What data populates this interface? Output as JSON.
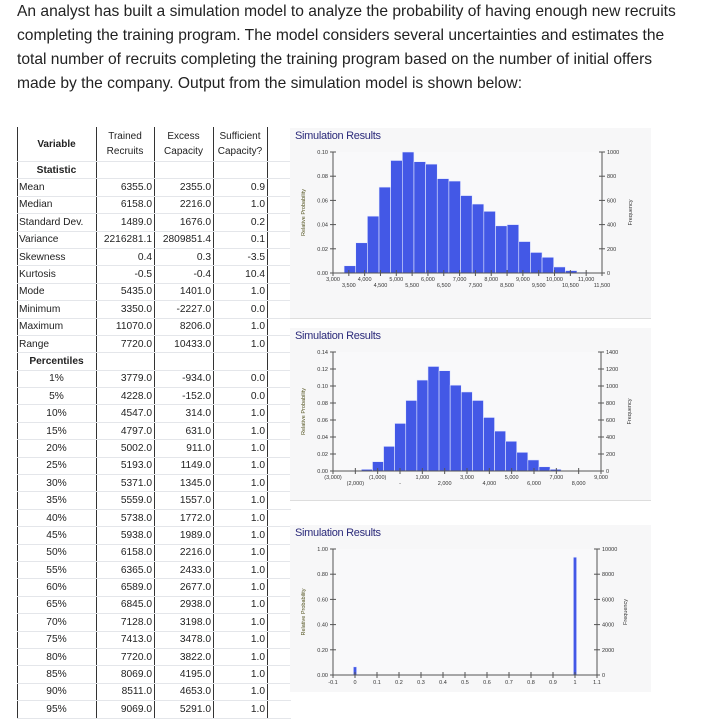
{
  "intro": "An analyst has built a simulation model to analyze the probability of having enough new recruits completing the training program. The model considers several uncertainties and estimates the total number of recruits completing the training program based on the number of initial offers made by the company. Output from the simulation model is shown below:",
  "table": {
    "header": {
      "variable": "Variable",
      "cols": [
        "Trained Recruits",
        "Excess Capacity",
        "Sufficient Capacity?"
      ]
    },
    "statistic_label": "Statistic",
    "stats": [
      {
        "label": "Mean",
        "values": [
          "6355.0",
          "2355.0",
          "0.9"
        ]
      },
      {
        "label": "Median",
        "values": [
          "6158.0",
          "2216.0",
          "1.0"
        ]
      },
      {
        "label": "Standard Dev.",
        "values": [
          "1489.0",
          "1676.0",
          "0.2"
        ]
      },
      {
        "label": "Variance",
        "values": [
          "2216281.1",
          "2809851.4",
          "0.1"
        ]
      },
      {
        "label": "Skewness",
        "values": [
          "0.4",
          "0.3",
          "-3.5"
        ]
      },
      {
        "label": "Kurtosis",
        "values": [
          "-0.5",
          "-0.4",
          "10.4"
        ]
      },
      {
        "label": "Mode",
        "values": [
          "5435.0",
          "1401.0",
          "1.0"
        ]
      },
      {
        "label": "Minimum",
        "values": [
          "3350.0",
          "-2227.0",
          "0.0"
        ]
      },
      {
        "label": "Maximum",
        "values": [
          "11070.0",
          "8206.0",
          "1.0"
        ]
      },
      {
        "label": "Range",
        "values": [
          "7720.0",
          "10433.0",
          "1.0"
        ]
      }
    ],
    "percentiles_label": "Percentiles",
    "percentiles": [
      {
        "label": "1%",
        "values": [
          "3779.0",
          "-934.0",
          "0.0"
        ]
      },
      {
        "label": "5%",
        "values": [
          "4228.0",
          "-152.0",
          "0.0"
        ]
      },
      {
        "label": "10%",
        "values": [
          "4547.0",
          "314.0",
          "1.0"
        ]
      },
      {
        "label": "15%",
        "values": [
          "4797.0",
          "631.0",
          "1.0"
        ]
      },
      {
        "label": "20%",
        "values": [
          "5002.0",
          "911.0",
          "1.0"
        ]
      },
      {
        "label": "25%",
        "values": [
          "5193.0",
          "1149.0",
          "1.0"
        ]
      },
      {
        "label": "30%",
        "values": [
          "5371.0",
          "1345.0",
          "1.0"
        ]
      },
      {
        "label": "35%",
        "values": [
          "5559.0",
          "1557.0",
          "1.0"
        ]
      },
      {
        "label": "40%",
        "values": [
          "5738.0",
          "1772.0",
          "1.0"
        ]
      },
      {
        "label": "45%",
        "values": [
          "5938.0",
          "1989.0",
          "1.0"
        ]
      },
      {
        "label": "50%",
        "values": [
          "6158.0",
          "2216.0",
          "1.0"
        ]
      },
      {
        "label": "55%",
        "values": [
          "6365.0",
          "2433.0",
          "1.0"
        ]
      },
      {
        "label": "60%",
        "values": [
          "6589.0",
          "2677.0",
          "1.0"
        ]
      },
      {
        "label": "65%",
        "values": [
          "6845.0",
          "2938.0",
          "1.0"
        ]
      },
      {
        "label": "70%",
        "values": [
          "7128.0",
          "3198.0",
          "1.0"
        ]
      },
      {
        "label": "75%",
        "values": [
          "7413.0",
          "3478.0",
          "1.0"
        ]
      },
      {
        "label": "80%",
        "values": [
          "7720.0",
          "3822.0",
          "1.0"
        ]
      },
      {
        "label": "85%",
        "values": [
          "8069.0",
          "4195.0",
          "1.0"
        ]
      },
      {
        "label": "90%",
        "values": [
          "8511.0",
          "4653.0",
          "1.0"
        ]
      },
      {
        "label": "95%",
        "values": [
          "9069.0",
          "5291.0",
          "1.0"
        ]
      }
    ]
  },
  "chart_data": [
    {
      "type": "bar",
      "title": "Simulation Results",
      "ylabel": "Relative Probability",
      "y2label": "Frequency",
      "xlim": [
        3000,
        11500
      ],
      "ylim": [
        0,
        0.1
      ],
      "y2lim": [
        0,
        1000
      ],
      "xticks": [
        3000,
        3500,
        4000,
        4500,
        5000,
        5500,
        6000,
        6500,
        7000,
        7500,
        8000,
        8500,
        9000,
        9500,
        10000,
        10500,
        11000,
        11500
      ],
      "xtick_labels": [
        "3,000",
        "3,500",
        "4,000",
        "4,500",
        "5,000",
        "5,500",
        "6,000",
        "6,500",
        "7,000",
        "7,500",
        "8,000",
        "8,500",
        "9,000",
        "9,500",
        "10,000",
        "10,500",
        "11,000",
        "11,500"
      ],
      "yticks": [
        "0.00",
        "0.02",
        "0.04",
        "0.06",
        "0.08",
        "0.10"
      ],
      "y2ticks": [
        "0",
        "200",
        "400",
        "600",
        "800",
        "1000"
      ],
      "bin_start": 3350,
      "bin_width": 368,
      "values": [
        0.006,
        0.025,
        0.047,
        0.071,
        0.093,
        0.1,
        0.092,
        0.09,
        0.078,
        0.076,
        0.064,
        0.057,
        0.051,
        0.039,
        0.04,
        0.026,
        0.017,
        0.013,
        0.005,
        0.002,
        0.0005
      ],
      "color": "#4358e6"
    },
    {
      "type": "bar",
      "title": "Simulation Results",
      "ylabel": "Relative Probability",
      "y2label": "Frequency",
      "xlim": [
        -3000,
        9000
      ],
      "ylim": [
        0,
        0.14
      ],
      "y2lim": [
        0,
        1400
      ],
      "xticks": [
        -3000,
        -2000,
        -1000,
        0,
        1000,
        2000,
        3000,
        4000,
        5000,
        6000,
        7000,
        8000,
        9000
      ],
      "xtick_labels": [
        "(3,000)",
        "(2,000)",
        "(1,000)",
        "-",
        "1,000",
        "2,000",
        "3,000",
        "4,000",
        "5,000",
        "6,000",
        "7,000",
        "8,000",
        "9,000"
      ],
      "yticks": [
        "0.00",
        "0.02",
        "0.04",
        "0.06",
        "0.08",
        "0.10",
        "0.12",
        "0.14"
      ],
      "y2ticks": [
        "0",
        "200",
        "400",
        "600",
        "800",
        "1000",
        "1200",
        "1400"
      ],
      "bin_start": -2227,
      "bin_width": 497,
      "values": [
        0.0005,
        0.002,
        0.011,
        0.029,
        0.056,
        0.083,
        0.107,
        0.123,
        0.118,
        0.101,
        0.093,
        0.083,
        0.063,
        0.047,
        0.035,
        0.022,
        0.013,
        0.005,
        0.002
      ],
      "color": "#4358e6"
    },
    {
      "type": "bar",
      "title": "Simulation Results",
      "ylabel": "Relative Probability",
      "y2label": "Frequency",
      "xlim": [
        -0.1,
        1.1
      ],
      "ylim": [
        0,
        1.0
      ],
      "y2lim": [
        0,
        10000
      ],
      "xticks": [
        -0.1,
        0,
        0.1,
        0.2,
        0.3,
        0.4,
        0.5,
        0.6,
        0.7,
        0.8,
        0.9,
        1,
        1.1
      ],
      "xtick_labels": [
        "-0.1",
        "0",
        "0.1",
        "0.2",
        "0.3",
        "0.4",
        "0.5",
        "0.6",
        "0.7",
        "0.8",
        "0.9",
        "1",
        "1.1"
      ],
      "yticks": [
        "0.00",
        "0.20",
        "0.40",
        "0.60",
        "0.80",
        "1.00"
      ],
      "y2ticks": [
        "0",
        "2000",
        "4000",
        "6000",
        "8000",
        "10000"
      ],
      "x": [
        0,
        1
      ],
      "values": [
        0.065,
        0.935
      ],
      "bar_width": 0.015,
      "color": "#4358e6"
    }
  ]
}
